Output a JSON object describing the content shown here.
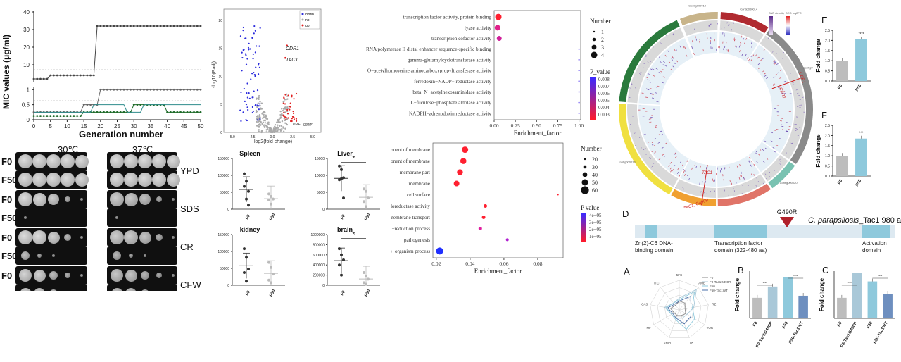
{
  "mic": {
    "ylabel": "MIC values (μg/ml)",
    "xlabel": "Generation number",
    "top_ticks": [
      "10",
      "20",
      "30",
      "40"
    ],
    "bottom_ticks": [
      "0",
      "0.5",
      "1"
    ],
    "x_ticks": [
      "0",
      "5",
      "10",
      "15",
      "20",
      "25",
      "30",
      "35",
      "40",
      "45",
      "50"
    ]
  },
  "spots": {
    "temps": [
      "30℃",
      "37℃"
    ],
    "media": [
      "YPD",
      "SDS",
      "CR",
      "CFW"
    ],
    "rows": [
      "F0",
      "F50",
      "F0",
      "F50",
      "F0",
      "F50",
      "F0",
      "F50"
    ]
  },
  "volcano": {
    "ylabel": "-log10(Padj)",
    "xlabel": "log2(fold change)",
    "legend": [
      "down",
      "no",
      "up"
    ],
    "labels": [
      "CDR1",
      "TAC1",
      "PME",
      "ggggf"
    ],
    "x_ticks": [
      "-5.0",
      "-2.5",
      "0.0",
      "2.5",
      "5.0"
    ],
    "y_ticks": [
      "0",
      "5",
      "10",
      "15",
      "20"
    ]
  },
  "organs": [
    {
      "title": "Spleen",
      "yticks": [
        "0",
        "50000",
        "100000",
        "150000"
      ],
      "groups": [
        "F0",
        "F50"
      ],
      "star": ""
    },
    {
      "title": "Liver",
      "yticks": [
        "0",
        "5000",
        "10000",
        "15000"
      ],
      "groups": [
        "F0",
        "F50"
      ],
      "star": "*"
    },
    {
      "title": "kidney",
      "yticks": [
        "0",
        "50000",
        "100000",
        "150000"
      ],
      "groups": [
        "F0",
        "F50"
      ],
      "star": ""
    },
    {
      "title": "brain",
      "yticks": [
        "0",
        "200000",
        "400000",
        "600000",
        "800000",
        "1000000"
      ],
      "groups": [
        "F0",
        "F50"
      ],
      "star": "*"
    }
  ],
  "go1": {
    "terms": [
      "transcription factor activity, protein binding",
      "lyase activity",
      "transcription cofactor activity",
      "RNA polymerase II distal enhancer sequence-specific binding",
      "gamma-glutamylcyclotransferase activity",
      "O−acetylhomoserine aminocarboxypropyltransferase activity",
      "ferredoxin−NADP+ reductase activity",
      "beta−N−acetylhexosaminidase activity",
      "L−fuculose−phosphate aldolase activity",
      "NADPH−adrenodoxin reductase activity"
    ],
    "xlabel": "Enrichment_factor",
    "x_ticks": [
      "0.00",
      "0.25",
      "0.50",
      "0.75",
      "1.00"
    ],
    "size_title": "Number",
    "size_ticks": [
      "1",
      "2",
      "3",
      "4"
    ],
    "color_title": "P_value",
    "color_ticks": [
      "0.008",
      "0.007",
      "0.006",
      "0.005",
      "0.004",
      "0.003"
    ]
  },
  "go2": {
    "terms": [
      "intrinsic component of membrane",
      "integral component of membrane",
      "membrane part",
      "membrane",
      "cell surface",
      "oxidoreductase activity",
      "transmembrane transport",
      "oxidation−reduction process",
      "pathogenesis",
      "single−organism process"
    ],
    "xlabel": "Enrichment_factor",
    "x_ticks": [
      "0.02",
      "0.04",
      "0.06",
      "0.08"
    ],
    "size_title": "Number",
    "size_ticks": [
      "20",
      "30",
      "40",
      "50",
      "60"
    ],
    "color_title": "P value",
    "color_ticks": [
      "4e−05",
      "3e−05",
      "2e−05",
      "1e−05"
    ]
  },
  "circos": {
    "contigs": [
      "Contig000010",
      "Contig000014",
      "Contig000003",
      "Contig000020",
      "Contig000058",
      "Contig000025",
      "Contig000013"
    ],
    "genes": [
      "CDR1",
      "CDR1",
      "TAC1",
      "TAC1_G490R"
    ],
    "legend_left": "SNP density",
    "legend_right": "DEG log2FC"
  },
  "barE": {
    "letter": "E",
    "ylabel": "Fold change",
    "yticks": [
      "0.0",
      "0.5",
      "1.0",
      "1.5",
      "2.0",
      "2.5"
    ],
    "cats": [
      "F0",
      "F50"
    ],
    "sig": "****"
  },
  "barF": {
    "letter": "F",
    "ylabel": "Fold change",
    "yticks": [
      "0.0",
      "0.5",
      "1.0",
      "1.5",
      "2.0",
      "2.5"
    ],
    "cats": [
      "F0",
      "F50"
    ],
    "sig": "***"
  },
  "domainD": {
    "letter": "D",
    "mutation": "G490R",
    "title_species": "C. parapsilosis",
    "title_rest": "_Tac1 980 aa",
    "domains": [
      "Zn(2)-C6 DNA-binding domain",
      "Transcription factor domain (322-480 aa)",
      "Activation domain"
    ]
  },
  "radar": {
    "letter": "A",
    "axes": [
      "5FC",
      "AMB",
      "RZ",
      "VOR",
      "IZ",
      "ANID",
      "MF",
      "CAS",
      "ITC"
    ],
    "legend": [
      "F0",
      "F0-Tac1G490R",
      "F50",
      "F50-Tac1WT"
    ]
  },
  "barB": {
    "letter": "B",
    "ylabel": "Fold change",
    "cats": [
      "F0",
      "F0-Tac1G490R",
      "F50",
      "F50-Tac1WT"
    ],
    "sig": [
      "****",
      "****"
    ]
  },
  "barC": {
    "letter": "C",
    "ylabel": "Fold change",
    "cats": [
      "F0",
      "F0-Tac1G490R",
      "F50",
      "F50-Tac1WT"
    ],
    "sig": [
      "****",
      "****"
    ]
  },
  "chart_data": [
    {
      "type": "line",
      "title": "",
      "xlabel": "Generation number",
      "ylabel": "MIC values (μg/ml)",
      "x": [
        0,
        5,
        10,
        15,
        20,
        25,
        30,
        35,
        40,
        45,
        50
      ],
      "series": [
        {
          "values": [
            2,
            4,
            4,
            4,
            32,
            32,
            32,
            32,
            32,
            32,
            32
          ]
        },
        {
          "values": [
            0.25,
            0.25,
            0.25,
            0.5,
            1,
            1,
            1,
            1,
            1,
            1,
            1
          ]
        },
        {
          "values": [
            0.125,
            0.125,
            0.125,
            0.25,
            0.25,
            0.25,
            0.5,
            0.5,
            0.25,
            0.25,
            0.25
          ]
        }
      ]
    },
    {
      "type": "bar",
      "title": "E",
      "ylabel": "Fold change",
      "categories": [
        "F0",
        "F50"
      ],
      "values": [
        1.0,
        2.05
      ],
      "ylim": [
        0,
        2.5
      ]
    },
    {
      "type": "bar",
      "title": "F",
      "ylabel": "Fold change",
      "categories": [
        "F0",
        "F50"
      ],
      "values": [
        1.0,
        1.85
      ],
      "ylim": [
        0,
        2.5
      ]
    },
    {
      "type": "scatter",
      "title": "GO1",
      "xlabel": "Enrichment_factor",
      "x": [
        0.05,
        0.04,
        0.06,
        1,
        1,
        1,
        1,
        1,
        1,
        1
      ]
    },
    {
      "type": "scatter",
      "title": "GO2",
      "xlabel": "Enrichment_factor",
      "x": [
        0.037,
        0.036,
        0.034,
        0.032,
        0.092,
        0.049,
        0.048,
        0.046,
        0.062,
        0.022
      ]
    }
  ]
}
